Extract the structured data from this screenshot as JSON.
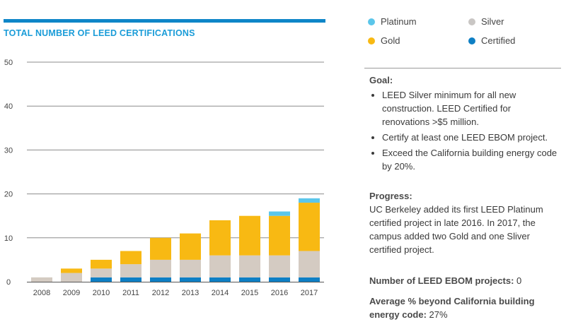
{
  "header": {
    "title": "TOTAL NUMBER OF LEED CERTIFICATIONS"
  },
  "colors": {
    "rule": "#0e86c8",
    "title": "#1a9cd8",
    "platinum": "#5bc6ea",
    "silver": "#d4cbc2",
    "gold": "#f8b913",
    "certified": "#0e7fc4"
  },
  "legend": {
    "items": [
      {
        "label": "Platinum",
        "color": "#5bc6ea"
      },
      {
        "label": "Silver",
        "color": "#c9c6c4"
      },
      {
        "label": "Gold",
        "color": "#f8b913"
      },
      {
        "label": "Certified",
        "color": "#0e7fc4"
      }
    ]
  },
  "goal": {
    "heading": "Goal:",
    "items": [
      "LEED Silver minimum for all new construction. LEED Certified for renovations >$5 million.",
      "Certify at least one LEED EBOM project.",
      "Exceed the California building energy code by 20%."
    ]
  },
  "progress": {
    "heading": "Progress:",
    "text": "UC Berkeley added its first LEED Platinum certified project in late 2016. In 2017, the campus added two Gold and one Sliver certified project."
  },
  "stats": {
    "ebom_label": "Number of LEED EBOM projects:",
    "ebom_value": " 0",
    "energy_label": "Average % beyond California building energy code:",
    "energy_value": " 27%"
  },
  "chart_data": {
    "type": "bar",
    "stacked": true,
    "categories": [
      "2008",
      "2009",
      "2010",
      "2011",
      "2012",
      "2013",
      "2014",
      "2015",
      "2016",
      "2017"
    ],
    "series": [
      {
        "name": "Certified",
        "color": "#0e7fc4",
        "values": [
          0,
          0,
          1,
          1,
          1,
          1,
          1,
          1,
          1,
          1
        ]
      },
      {
        "name": "Silver",
        "color": "#d4cbc2",
        "values": [
          1,
          2,
          2,
          3,
          4,
          4,
          5,
          5,
          5,
          6
        ]
      },
      {
        "name": "Gold",
        "color": "#f8b913",
        "values": [
          0,
          1,
          2,
          3,
          5,
          6,
          8,
          9,
          9,
          11
        ]
      },
      {
        "name": "Platinum",
        "color": "#5bc6ea",
        "values": [
          0,
          0,
          0,
          0,
          0,
          0,
          0,
          0,
          1,
          1
        ]
      }
    ],
    "yticks": [
      0,
      10,
      20,
      30,
      40,
      50
    ],
    "ylim": [
      0,
      50
    ],
    "grid": true,
    "legend_position": "top-right"
  }
}
